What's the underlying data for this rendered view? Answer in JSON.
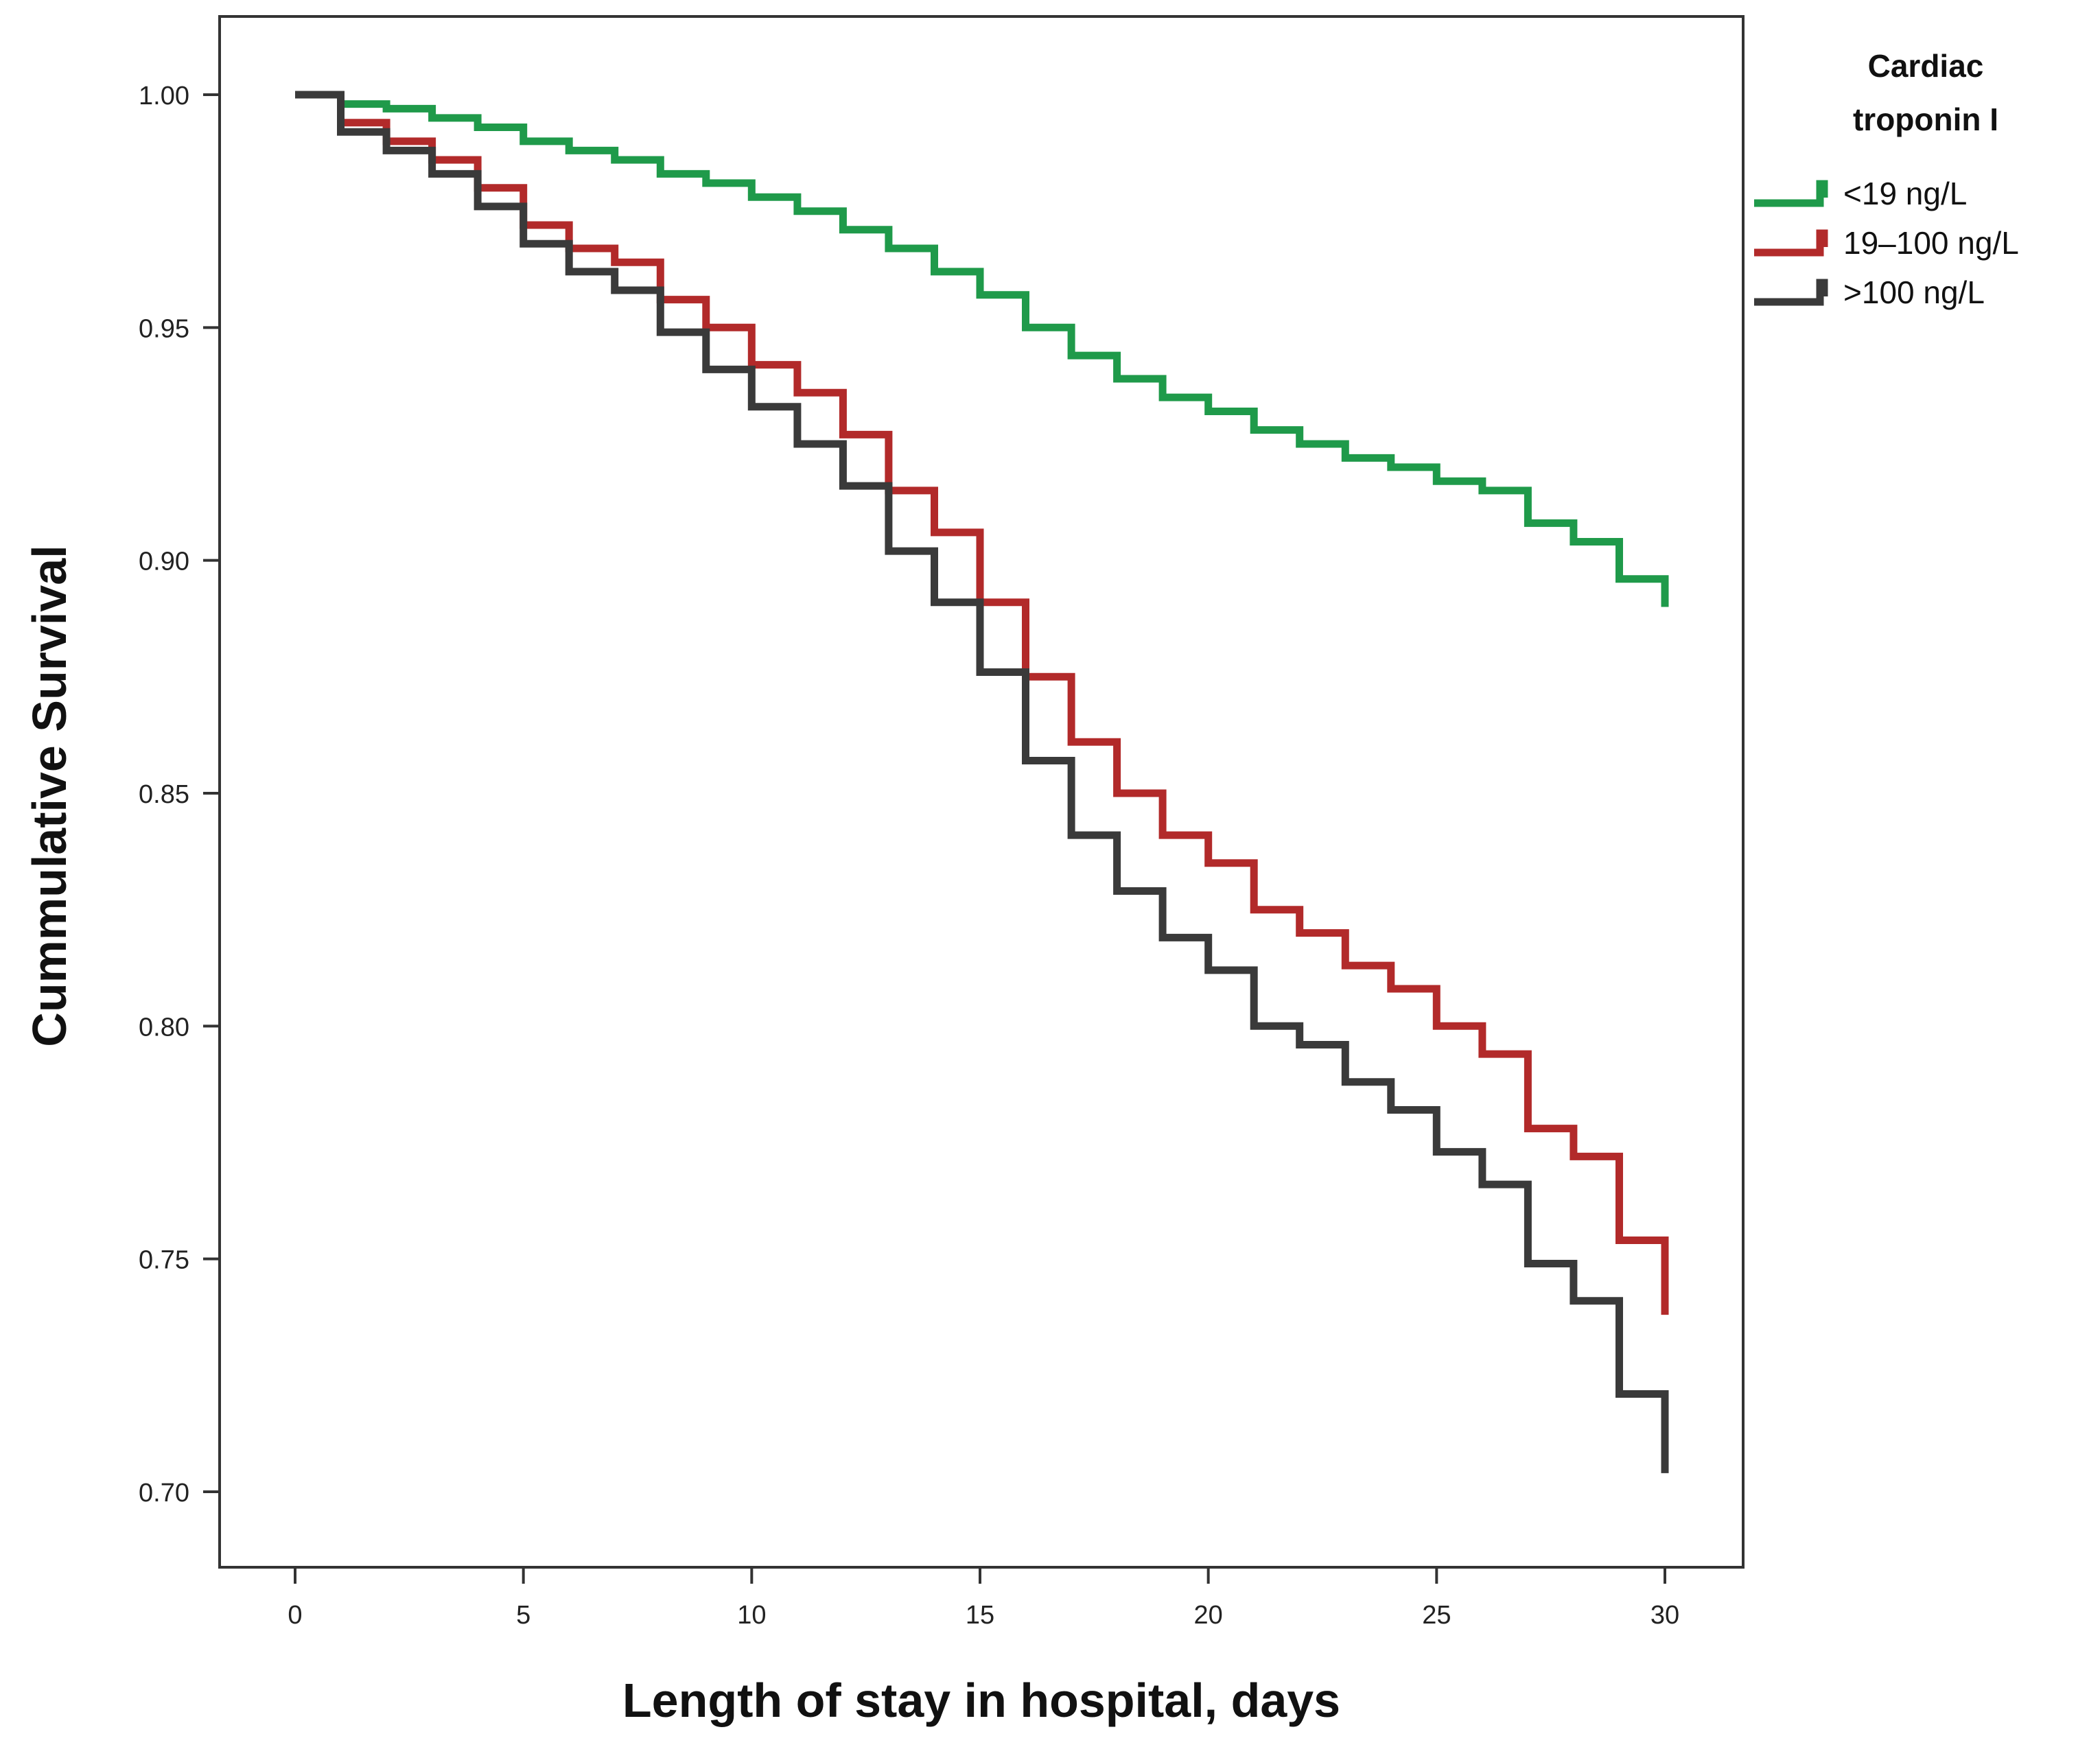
{
  "chart_data": {
    "type": "line",
    "subtype": "kaplan-meier-step",
    "title": "",
    "xlabel": "Length of stay in hospital, days",
    "ylabel": "Cummulative Survival",
    "xlim": [
      0,
      30
    ],
    "ylim": [
      0.7,
      1.0
    ],
    "x_ticks": [
      0,
      5,
      10,
      15,
      20,
      25,
      30
    ],
    "y_ticks": [
      0.7,
      0.75,
      0.8,
      0.85,
      0.9,
      0.95,
      1.0
    ],
    "x_tick_labels": [
      "0",
      "5",
      "10",
      "15",
      "20",
      "25",
      "30"
    ],
    "y_tick_labels": [
      "0.70",
      "0.75",
      "0.80",
      "0.85",
      "0.90",
      "0.95",
      "1.00"
    ],
    "grid": false,
    "legend": {
      "title_lines": [
        "Cardiac",
        "troponin I"
      ],
      "position": "top-right outside"
    },
    "series": [
      {
        "name": "<19 ng/L",
        "color": "#1f9a4a",
        "x": [
          0,
          1,
          2,
          3,
          4,
          5,
          6,
          7,
          8,
          9,
          10,
          11,
          12,
          13,
          14,
          15,
          16,
          17,
          18,
          19,
          20,
          21,
          22,
          23,
          24,
          25,
          26,
          27,
          28,
          29,
          30
        ],
        "values": [
          1.0,
          0.998,
          0.997,
          0.995,
          0.993,
          0.99,
          0.988,
          0.986,
          0.983,
          0.981,
          0.978,
          0.975,
          0.971,
          0.967,
          0.962,
          0.957,
          0.95,
          0.944,
          0.939,
          0.935,
          0.932,
          0.928,
          0.925,
          0.922,
          0.92,
          0.917,
          0.915,
          0.908,
          0.904,
          0.896,
          0.89
        ]
      },
      {
        "name": "19–100 ng/L",
        "color": "#b22a2a",
        "x": [
          0,
          1,
          2,
          3,
          4,
          5,
          6,
          7,
          8,
          9,
          10,
          11,
          12,
          13,
          14,
          15,
          16,
          17,
          18,
          19,
          20,
          21,
          22,
          23,
          24,
          25,
          26,
          27,
          28,
          29,
          30
        ],
        "values": [
          1.0,
          0.994,
          0.99,
          0.986,
          0.98,
          0.972,
          0.967,
          0.964,
          0.956,
          0.95,
          0.942,
          0.936,
          0.927,
          0.915,
          0.906,
          0.891,
          0.875,
          0.861,
          0.85,
          0.841,
          0.835,
          0.825,
          0.82,
          0.813,
          0.808,
          0.8,
          0.794,
          0.778,
          0.772,
          0.754,
          0.738
        ]
      },
      {
        "name": ">100 ng/L",
        "color": "#3a3a3a",
        "x": [
          0,
          1,
          2,
          3,
          4,
          5,
          6,
          7,
          8,
          9,
          10,
          11,
          12,
          13,
          14,
          15,
          16,
          17,
          18,
          19,
          20,
          21,
          22,
          23,
          24,
          25,
          26,
          27,
          28,
          29,
          30
        ],
        "values": [
          1.0,
          0.992,
          0.988,
          0.983,
          0.976,
          0.968,
          0.962,
          0.958,
          0.949,
          0.941,
          0.933,
          0.925,
          0.916,
          0.902,
          0.891,
          0.876,
          0.857,
          0.841,
          0.829,
          0.819,
          0.812,
          0.8,
          0.796,
          0.788,
          0.782,
          0.773,
          0.766,
          0.749,
          0.741,
          0.721,
          0.704
        ]
      }
    ]
  }
}
